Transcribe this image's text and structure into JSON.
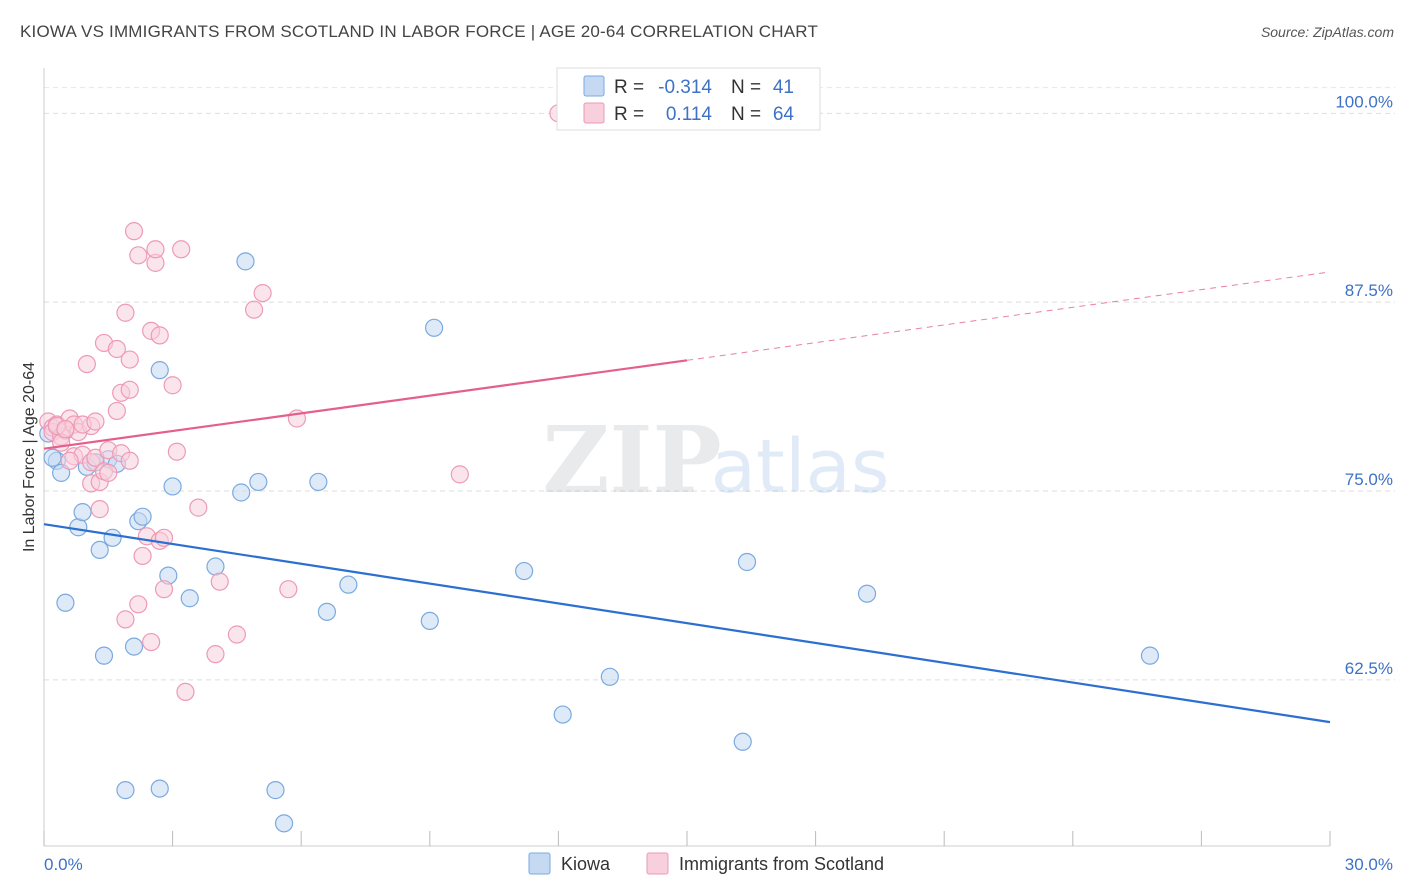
{
  "header": {
    "title": "KIOWA VS IMMIGRANTS FROM SCOTLAND IN LABOR FORCE | AGE 20-64 CORRELATION CHART",
    "source": "Source: ZipAtlas.com"
  },
  "watermark": {
    "zip": "ZIP",
    "atlas": "atlas"
  },
  "chart_data": {
    "type": "scatter",
    "ylabel": "In Labor Force | Age 20-64",
    "xlim": [
      0,
      30
    ],
    "ylim": [
      51.5,
      103
    ],
    "x_tick_labels": [
      "0.0%",
      "30.0%"
    ],
    "y_ticks": [
      62.5,
      75.0,
      87.5,
      100.0
    ],
    "y_tick_labels": [
      "62.5%",
      "75.0%",
      "87.5%",
      "100.0%"
    ],
    "grid": true,
    "legend_position": "bottom-center",
    "stats_box": [
      {
        "r_label": "R =",
        "r_value": "-0.314",
        "n_label": "N =",
        "n_value": "41"
      },
      {
        "r_label": "R =",
        "r_value": "0.114",
        "n_label": "N =",
        "n_value": "64"
      }
    ],
    "series": [
      {
        "name": "Kiowa",
        "color": "#7aaae0",
        "fill": "#c5d9f3",
        "line_color": "#2b6fd1",
        "trend": {
          "x0": 0,
          "y0": 72.8,
          "x1": 30,
          "y1": 59.7,
          "dashed_from": null
        },
        "points": [
          [
            0.1,
            78.8
          ],
          [
            0.3,
            77.0
          ],
          [
            0.4,
            76.2
          ],
          [
            0.5,
            67.6
          ],
          [
            0.8,
            72.6
          ],
          [
            0.9,
            73.6
          ],
          [
            1.0,
            76.6
          ],
          [
            1.3,
            71.1
          ],
          [
            1.4,
            64.1
          ],
          [
            1.5,
            77.1
          ],
          [
            1.6,
            71.9
          ],
          [
            1.7,
            76.8
          ],
          [
            1.9,
            55.2
          ],
          [
            2.1,
            64.7
          ],
          [
            2.2,
            73.0
          ],
          [
            2.3,
            73.3
          ],
          [
            2.7,
            55.3
          ],
          [
            2.7,
            83.0
          ],
          [
            2.9,
            69.4
          ],
          [
            3.0,
            75.3
          ],
          [
            3.4,
            67.9
          ],
          [
            4.0,
            70.0
          ],
          [
            4.6,
            74.9
          ],
          [
            4.7,
            90.2
          ],
          [
            5.0,
            75.6
          ],
          [
            5.4,
            55.2
          ],
          [
            5.6,
            53.0
          ],
          [
            6.4,
            75.6
          ],
          [
            6.6,
            67.0
          ],
          [
            7.1,
            68.8
          ],
          [
            9.0,
            66.4
          ],
          [
            9.1,
            85.8
          ],
          [
            11.2,
            69.7
          ],
          [
            12.1,
            60.2
          ],
          [
            13.2,
            62.7
          ],
          [
            16.3,
            58.4
          ],
          [
            16.4,
            70.3
          ],
          [
            19.2,
            68.2
          ],
          [
            25.8,
            64.1
          ],
          [
            0.2,
            77.2
          ],
          [
            1.2,
            76.9
          ]
        ]
      },
      {
        "name": "Immigrants from Scotland",
        "color": "#ee9ab5",
        "fill": "#f8cfdc",
        "line_color": "#e55f8c",
        "trend": {
          "x0": 0,
          "y0": 77.8,
          "x1": 30,
          "y1": 89.5,
          "dashed_from": 15.0
        },
        "points": [
          [
            0.1,
            79.6
          ],
          [
            0.2,
            79.2
          ],
          [
            0.2,
            78.9
          ],
          [
            0.3,
            79.4
          ],
          [
            0.4,
            78.6
          ],
          [
            0.5,
            79.0
          ],
          [
            0.6,
            79.8
          ],
          [
            0.7,
            77.3
          ],
          [
            0.7,
            79.4
          ],
          [
            0.8,
            78.9
          ],
          [
            0.9,
            77.4
          ],
          [
            1.0,
            83.4
          ],
          [
            1.1,
            79.3
          ],
          [
            1.1,
            76.9
          ],
          [
            1.1,
            75.5
          ],
          [
            1.2,
            77.2
          ],
          [
            1.3,
            75.6
          ],
          [
            1.3,
            73.8
          ],
          [
            1.4,
            84.8
          ],
          [
            1.4,
            76.3
          ],
          [
            1.5,
            77.7
          ],
          [
            1.7,
            84.4
          ],
          [
            1.7,
            80.3
          ],
          [
            1.8,
            81.5
          ],
          [
            1.8,
            77.5
          ],
          [
            1.9,
            86.8
          ],
          [
            1.9,
            66.5
          ],
          [
            2.0,
            81.7
          ],
          [
            2.0,
            83.7
          ],
          [
            2.0,
            77.0
          ],
          [
            2.1,
            92.2
          ],
          [
            2.2,
            90.6
          ],
          [
            2.2,
            67.5
          ],
          [
            2.3,
            70.7
          ],
          [
            2.4,
            72.0
          ],
          [
            2.5,
            85.6
          ],
          [
            2.5,
            65.0
          ],
          [
            2.6,
            90.1
          ],
          [
            2.6,
            91.0
          ],
          [
            2.7,
            71.7
          ],
          [
            2.7,
            85.3
          ],
          [
            2.8,
            71.9
          ],
          [
            2.8,
            68.5
          ],
          [
            3.0,
            82.0
          ],
          [
            3.1,
            77.6
          ],
          [
            3.2,
            91.0
          ],
          [
            3.3,
            61.7
          ],
          [
            3.6,
            73.9
          ],
          [
            4.0,
            64.2
          ],
          [
            4.1,
            69.0
          ],
          [
            4.5,
            65.5
          ],
          [
            4.9,
            87.0
          ],
          [
            5.1,
            88.1
          ],
          [
            5.7,
            68.5
          ],
          [
            5.9,
            79.8
          ],
          [
            9.7,
            76.1
          ],
          [
            12.0,
            100.0
          ],
          [
            0.3,
            79.3
          ],
          [
            0.6,
            77.0
          ],
          [
            0.9,
            79.4
          ],
          [
            1.2,
            79.6
          ],
          [
            1.5,
            76.2
          ],
          [
            0.4,
            78.2
          ],
          [
            0.5,
            79.1
          ]
        ]
      }
    ]
  }
}
